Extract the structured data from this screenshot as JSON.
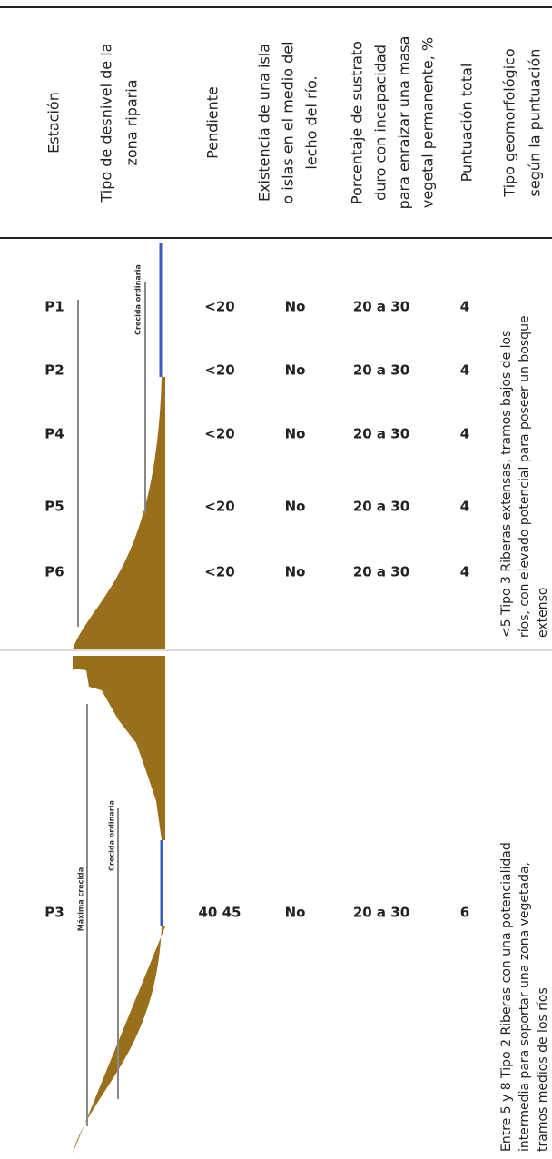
{
  "header": {
    "columns": [
      [
        "Estación"
      ],
      [
        "Tipo de desnivel de la",
        "zona riparia"
      ],
      [
        "Pendiente"
      ],
      [
        "Existencia de una isla",
        "o islas en el medio del",
        "lecho del río."
      ],
      [
        "Porcentaje de sustrato",
        "duro con incapacidad",
        "para enraizar una masa",
        "vegetal permanente, %"
      ],
      [
        "Puntuación total"
      ],
      [
        "Tipo geomorfológico",
        "según la puntuación"
      ]
    ]
  },
  "groups": [
    {
      "rows": [
        [
          "P1",
          "<20",
          "No",
          "20 a 30",
          "4"
        ],
        [
          "P2",
          "<20",
          "No",
          "20 a 30",
          "4"
        ],
        [
          "P4",
          "<20",
          "No",
          "20 a 30",
          "4"
        ],
        [
          "P5",
          "<20",
          "No",
          "20 a 30",
          "4"
        ],
        [
          "P6",
          "<20",
          "No",
          "20 a 30",
          "4"
        ]
      ],
      "diagram_labels": [
        "Crecida ordinaria"
      ],
      "geomorphology": [
        "<5 Tipo 3 Riberas extensas, tramos bajos de los",
        "ríos, con elevado potencial para poseer un bosque",
        "extenso"
      ]
    },
    {
      "rows": [
        [
          "P3",
          "40 45",
          "No",
          "20 a 30",
          "6"
        ]
      ],
      "diagram_labels": [
        "Máxima crecida",
        "Crecida ordinaria"
      ],
      "geomorphology": [
        "Entre 5 y 8 Tipo 2 Riberas con una potencialidad",
        "intermedia para soportar una zona vegetada,",
        "tramos medios de los ríos"
      ]
    }
  ]
}
